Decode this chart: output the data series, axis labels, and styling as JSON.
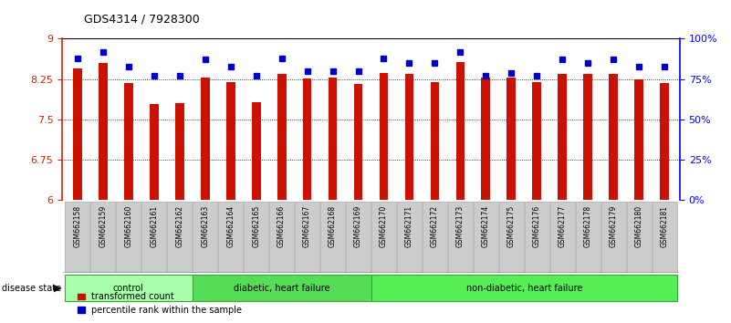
{
  "title": "GDS4314 / 7928300",
  "samples": [
    "GSM662158",
    "GSM662159",
    "GSM662160",
    "GSM662161",
    "GSM662162",
    "GSM662163",
    "GSM662164",
    "GSM662165",
    "GSM662166",
    "GSM662167",
    "GSM662168",
    "GSM662169",
    "GSM662170",
    "GSM662171",
    "GSM662172",
    "GSM662173",
    "GSM662174",
    "GSM662175",
    "GSM662176",
    "GSM662177",
    "GSM662178",
    "GSM662179",
    "GSM662180",
    "GSM662181"
  ],
  "red_values": [
    8.45,
    8.55,
    8.18,
    7.78,
    7.8,
    8.28,
    8.19,
    7.82,
    8.35,
    8.27,
    8.28,
    8.16,
    8.36,
    8.35,
    8.2,
    8.57,
    8.28,
    8.28,
    8.19,
    8.35,
    8.35,
    8.35,
    8.25,
    8.18
  ],
  "blue_values": [
    88,
    92,
    83,
    77,
    77,
    87,
    83,
    77,
    88,
    80,
    80,
    80,
    88,
    85,
    85,
    92,
    77,
    79,
    77,
    87,
    85,
    87,
    83,
    83
  ],
  "groups": [
    {
      "label": "control",
      "start": 0,
      "end": 4,
      "color": "#AAFFAA"
    },
    {
      "label": "diabetic, heart failure",
      "start": 5,
      "end": 11,
      "color": "#55DD55"
    },
    {
      "label": "non-diabetic, heart failure",
      "start": 12,
      "end": 23,
      "color": "#55EE55"
    }
  ],
  "bar_color": "#CC1100",
  "dot_color": "#0000CC",
  "left_ylim": [
    6,
    9
  ],
  "right_ylim": [
    0,
    100
  ],
  "left_yticks": [
    6,
    6.75,
    7.5,
    8.25,
    9
  ],
  "left_yticklabels": [
    "6",
    "6.75",
    "7.5",
    "8.25",
    "9"
  ],
  "right_yticks": [
    0,
    25,
    50,
    75,
    100
  ],
  "right_yticklabels": [
    "0%",
    "25%",
    "50%",
    "75%",
    "100%"
  ],
  "bg_color": "#FFFFFF",
  "tick_label_bg": "#CCCCCC",
  "group_border_color": "#33AA33"
}
